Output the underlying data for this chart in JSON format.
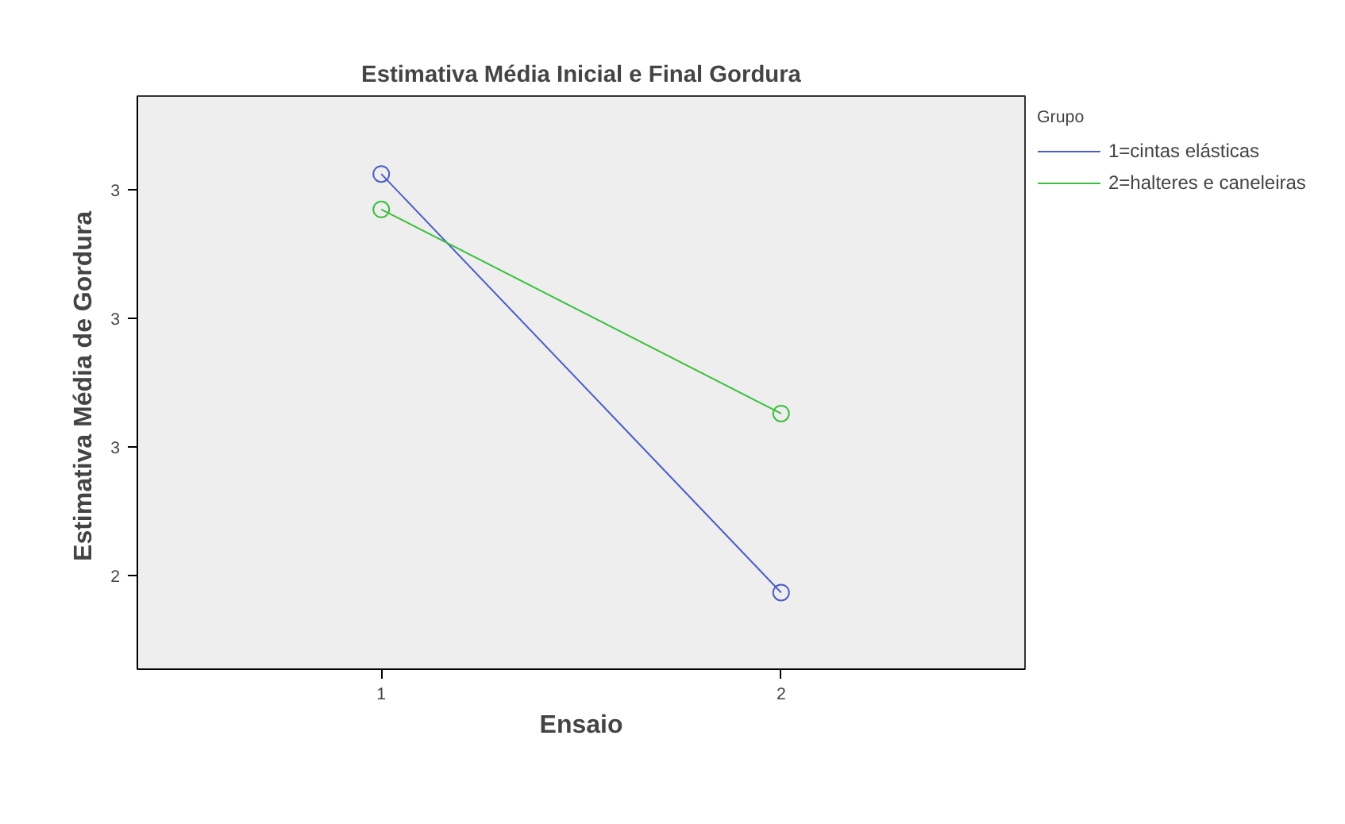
{
  "chart_data": {
    "type": "line",
    "title": "Estimativa Média Inicial e Final Gordura",
    "xlabel": "Ensaio",
    "ylabel": "Estimativa  Média de Gordura",
    "legend_title": "Grupo",
    "x": [
      1,
      2
    ],
    "xlim": [
      0.39,
      2.61
    ],
    "xticks": [
      1,
      2
    ],
    "ylim": [
      2.255,
      3.145
    ],
    "yticks": [
      {
        "value": 2.4,
        "label": "2"
      },
      {
        "value": 2.6,
        "label": "3"
      },
      {
        "value": 2.8,
        "label": "3"
      },
      {
        "value": 3.0,
        "label": "3"
      }
    ],
    "series": [
      {
        "name": "1=cintas elásticas",
        "color": "#4a5ec4",
        "values": [
          3.024,
          2.374
        ]
      },
      {
        "name": "2=halteres e caneleiras",
        "color": "#3cbf3c",
        "values": [
          2.969,
          2.652
        ]
      }
    ],
    "marker": "circle",
    "grid": false,
    "legend": "right"
  }
}
